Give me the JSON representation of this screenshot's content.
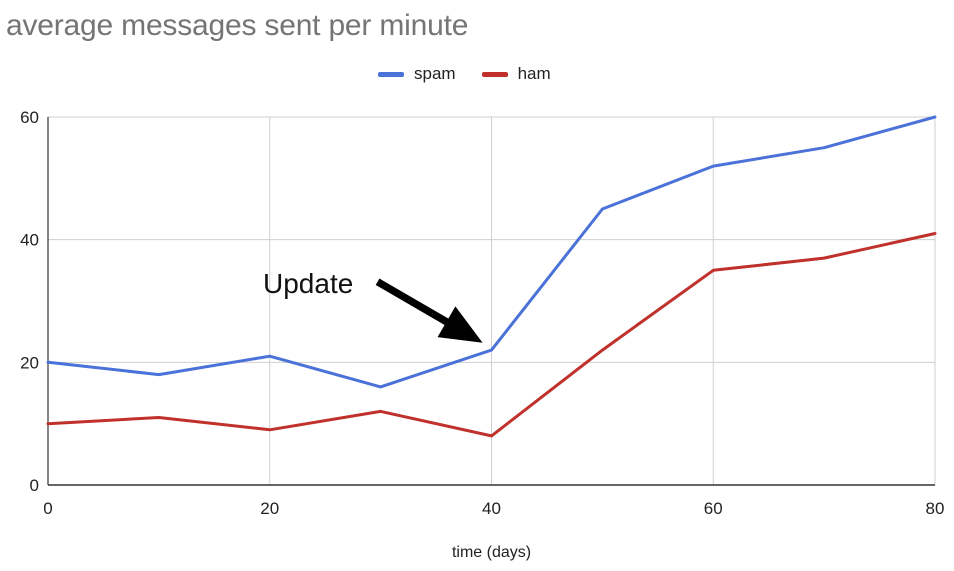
{
  "chart_data": {
    "type": "line",
    "title": "average messages sent per minute",
    "xlabel": "time (days)",
    "ylabel": "",
    "xlim": [
      0,
      80
    ],
    "ylim": [
      0,
      60
    ],
    "x_ticks": [
      "0",
      "20",
      "40",
      "60",
      "80"
    ],
    "y_ticks": [
      "0",
      "20",
      "40",
      "60"
    ],
    "x": [
      0,
      10,
      20,
      30,
      40,
      50,
      60,
      70,
      80
    ],
    "series": [
      {
        "name": "spam",
        "color": "#4a72d8",
        "values": [
          20,
          18,
          21,
          16,
          22,
          45,
          52,
          55,
          60
        ]
      },
      {
        "name": "ham",
        "color": "#c0312b",
        "values": [
          10,
          11,
          9,
          12,
          8,
          22,
          35,
          37,
          41
        ]
      }
    ],
    "grid": true,
    "legend_position": "top-center",
    "annotations": [
      {
        "text": "Update",
        "points_to": {
          "x": 40,
          "y": 22
        }
      }
    ]
  }
}
